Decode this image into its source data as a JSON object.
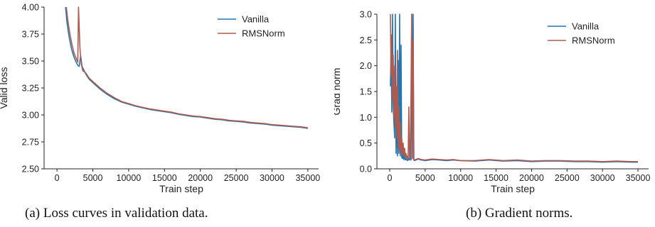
{
  "figure": {
    "caption_a": "(a) Loss curves in validation data.",
    "caption_b": "(b) Gradient norms."
  },
  "colors": {
    "vanilla": "#1f77b4",
    "rmsnorm": "#b05a4f",
    "axis": "#222222"
  },
  "chart_data": [
    {
      "type": "line",
      "title": "",
      "xlabel": "Train step",
      "ylabel": "Valid loss",
      "xlim": [
        -1800,
        36500
      ],
      "ylim": [
        2.5,
        4.0
      ],
      "xticks": [
        0,
        5000,
        10000,
        15000,
        20000,
        25000,
        30000,
        35000
      ],
      "yticks": [
        2.5,
        2.75,
        3.0,
        3.25,
        3.5,
        3.75,
        4.0
      ],
      "ytick_labels": [
        "2.50",
        "2.75",
        "3.00",
        "3.25",
        "3.50",
        "3.75",
        "4.00"
      ],
      "grid": false,
      "legend": "top-right",
      "series": [
        {
          "name": "Vanilla",
          "color": "#1f77b4",
          "x": [
            1200,
            1400,
            1700,
            2000,
            2300,
            2600,
            2900,
            3100,
            3300,
            3500,
            4000,
            4500,
            5000,
            6000,
            7000,
            8000,
            9000,
            10000,
            11000,
            12000,
            13000,
            14000,
            15000,
            16000,
            17000,
            18000,
            19000,
            20000,
            21000,
            22000,
            23000,
            24000,
            25000,
            26000,
            27000,
            28000,
            29000,
            30000,
            31000,
            32000,
            33000,
            34000,
            35000
          ],
          "y": [
            4.0,
            3.85,
            3.72,
            3.62,
            3.55,
            3.5,
            3.46,
            3.45,
            3.55,
            3.45,
            3.38,
            3.33,
            3.3,
            3.24,
            3.19,
            3.15,
            3.12,
            3.1,
            3.08,
            3.065,
            3.05,
            3.04,
            3.03,
            3.02,
            3.005,
            2.995,
            2.985,
            2.98,
            2.97,
            2.96,
            2.955,
            2.945,
            2.94,
            2.935,
            2.925,
            2.92,
            2.915,
            2.905,
            2.9,
            2.895,
            2.89,
            2.885,
            2.875
          ]
        },
        {
          "name": "RMSNorm",
          "color": "#b05a4f",
          "x": [
            1300,
            1500,
            1800,
            2100,
            2400,
            2700,
            2900,
            3000,
            3200,
            3400,
            3600,
            4000,
            4500,
            5000,
            6000,
            7000,
            8000,
            9000,
            10000,
            11000,
            12000,
            13000,
            14000,
            15000,
            16000,
            17000,
            18000,
            19000,
            20000,
            21000,
            22000,
            23000,
            24000,
            25000,
            26000,
            27000,
            28000,
            29000,
            30000,
            31000,
            32000,
            33000,
            34000,
            35000
          ],
          "y": [
            4.0,
            3.88,
            3.75,
            3.65,
            3.57,
            3.52,
            3.49,
            4.0,
            3.62,
            3.47,
            3.41,
            3.39,
            3.34,
            3.31,
            3.25,
            3.2,
            3.16,
            3.125,
            3.105,
            3.085,
            3.07,
            3.055,
            3.045,
            3.035,
            3.025,
            3.01,
            3.0,
            2.99,
            2.985,
            2.975,
            2.965,
            2.96,
            2.95,
            2.945,
            2.94,
            2.93,
            2.925,
            2.92,
            2.91,
            2.905,
            2.9,
            2.895,
            2.89,
            2.88
          ]
        }
      ]
    },
    {
      "type": "line",
      "title": "",
      "xlabel": "Train step",
      "ylabel": "Grad norm",
      "xlim": [
        -1800,
        36500
      ],
      "ylim": [
        0.0,
        3.0
      ],
      "xticks": [
        0,
        5000,
        10000,
        15000,
        20000,
        25000,
        30000,
        35000
      ],
      "yticks": [
        0.0,
        0.5,
        1.0,
        1.5,
        2.0,
        2.5,
        3.0
      ],
      "ytick_labels": [
        "0.0",
        "0.5",
        "1.0",
        "1.5",
        "2.0",
        "2.5",
        "3.0"
      ],
      "grid": false,
      "legend": "top-right",
      "series": [
        {
          "name": "Vanilla",
          "color": "#1f77b4",
          "x": [
            100,
            200,
            300,
            400,
            500,
            600,
            700,
            800,
            900,
            1000,
            1100,
            1200,
            1300,
            1400,
            1500,
            1600,
            1700,
            1800,
            1900,
            2000,
            2100,
            2200,
            2300,
            2400,
            2500,
            2600,
            2700,
            2800,
            2900,
            3000,
            3100,
            3200,
            3300,
            3400,
            3500,
            4000,
            4500,
            5000,
            6000,
            7000,
            8000,
            9000,
            10000,
            12000,
            14000,
            16000,
            18000,
            20000,
            22000,
            24000,
            26000,
            28000,
            30000,
            32000,
            34000,
            35000
          ],
          "y": [
            1.6,
            2.4,
            1.1,
            3.0,
            1.2,
            0.9,
            0.6,
            3.0,
            0.3,
            1.3,
            0.25,
            2.1,
            0.3,
            3.0,
            0.25,
            2.4,
            0.22,
            0.2,
            0.3,
            0.18,
            0.25,
            0.17,
            0.2,
            0.18,
            0.16,
            0.22,
            0.17,
            0.18,
            0.2,
            0.17,
            3.0,
            0.2,
            3.0,
            0.17,
            0.16,
            0.19,
            0.17,
            0.16,
            0.18,
            0.17,
            0.16,
            0.17,
            0.16,
            0.15,
            0.17,
            0.15,
            0.16,
            0.14,
            0.15,
            0.15,
            0.14,
            0.14,
            0.13,
            0.14,
            0.13,
            0.13
          ]
        },
        {
          "name": "RMSNorm",
          "color": "#b05a4f",
          "x": [
            100,
            200,
            300,
            400,
            500,
            600,
            700,
            800,
            900,
            1000,
            1100,
            1200,
            1300,
            1400,
            1500,
            1600,
            1700,
            1800,
            1900,
            2000,
            2100,
            2200,
            2300,
            2400,
            2500,
            2600,
            2700,
            2800,
            2900,
            3000,
            3100,
            3200,
            3300,
            3400,
            3500,
            4000,
            4500,
            5000,
            6000,
            7000,
            8000,
            9000,
            10000,
            12000,
            14000,
            16000,
            18000,
            20000,
            22000,
            24000,
            26000,
            28000,
            30000,
            32000,
            34000,
            35000
          ],
          "y": [
            3.0,
            1.8,
            2.6,
            1.3,
            2.2,
            1.0,
            2.0,
            0.8,
            1.6,
            0.6,
            2.3,
            0.4,
            1.2,
            0.35,
            0.9,
            0.3,
            0.6,
            0.28,
            0.5,
            0.25,
            0.4,
            0.22,
            0.3,
            0.2,
            0.25,
            0.2,
            1.2,
            0.2,
            0.25,
            1.4,
            3.0,
            0.2,
            2.5,
            0.18,
            0.17,
            0.2,
            0.18,
            0.17,
            0.19,
            0.18,
            0.17,
            0.18,
            0.16,
            0.16,
            0.18,
            0.16,
            0.17,
            0.15,
            0.16,
            0.16,
            0.15,
            0.15,
            0.14,
            0.15,
            0.14,
            0.14
          ]
        }
      ]
    }
  ]
}
